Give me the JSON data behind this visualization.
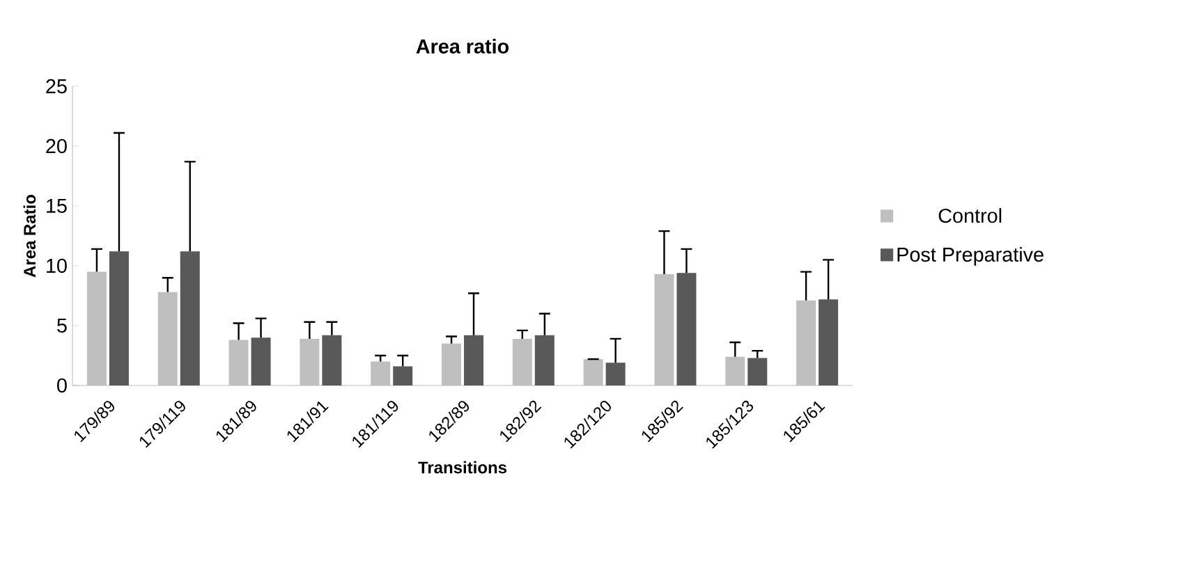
{
  "chart_data": {
    "type": "bar",
    "title": "Area ratio",
    "xlabel": "Transitions",
    "ylabel": "Area Ratio",
    "categories": [
      "179/89",
      "179/119",
      "181/89",
      "181/91",
      "181/119",
      "182/89",
      "182/92",
      "182/120",
      "185/92",
      "185/123",
      "185/61"
    ],
    "series": [
      {
        "name": "Control",
        "color": "#bfbfbf",
        "values": [
          9.5,
          7.8,
          3.8,
          3.9,
          2.0,
          3.5,
          3.9,
          2.2,
          9.3,
          2.4,
          7.1
        ],
        "errors": [
          [
            9.5,
            11.4
          ],
          [
            7.8,
            9.0
          ],
          [
            3.8,
            5.2
          ],
          [
            3.9,
            5.3
          ],
          [
            2.0,
            2.5
          ],
          [
            3.5,
            4.1
          ],
          [
            3.9,
            4.6
          ],
          [
            2.2,
            2.2
          ],
          [
            9.3,
            12.9
          ],
          [
            2.4,
            3.6
          ],
          [
            7.1,
            9.5
          ]
        ]
      },
      {
        "name": "Post Preparative",
        "color": "#595959",
        "values": [
          11.2,
          11.2,
          4.0,
          4.2,
          1.6,
          4.2,
          4.2,
          1.9,
          9.4,
          2.3,
          7.2
        ],
        "errors": [
          [
            11.2,
            21.1
          ],
          [
            11.2,
            18.7
          ],
          [
            4.0,
            5.6
          ],
          [
            4.2,
            5.3
          ],
          [
            1.6,
            2.5
          ],
          [
            4.2,
            7.7
          ],
          [
            4.2,
            6.0
          ],
          [
            1.9,
            3.9
          ],
          [
            9.4,
            11.4
          ],
          [
            2.3,
            2.9
          ],
          [
            7.2,
            10.5
          ]
        ]
      }
    ],
    "ylim": [
      0,
      25
    ],
    "yticks": [
      0,
      5,
      10,
      15,
      20,
      25
    ],
    "grid": false,
    "legend": "right"
  }
}
